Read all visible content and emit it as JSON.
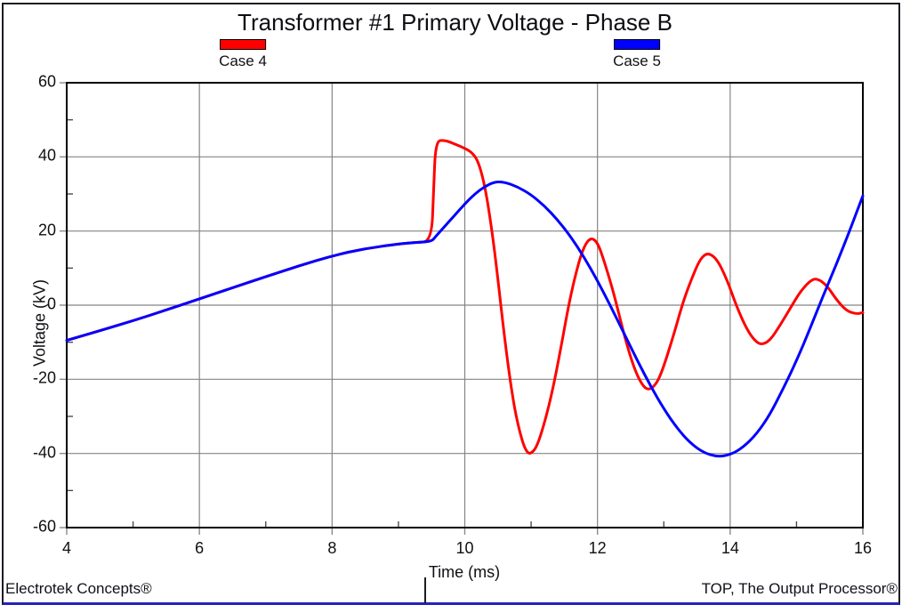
{
  "window": {
    "footer_left": "Electrotek Concepts®",
    "footer_right": "TOP, The Output Processor®"
  },
  "colors": {
    "grid": "#858585",
    "frame": "#000000",
    "major_tick": "#8a8a8a",
    "minor_tick": "#4d4d4d",
    "bottom_bar": "#2323b8",
    "case4": "#ff0000",
    "case5": "#0000ff"
  },
  "chart_data": {
    "type": "line",
    "title": "Transformer #1 Primary Voltage - Phase B",
    "xlabel": "Time (ms)",
    "ylabel": "Voltage (kV)",
    "xlim": [
      4,
      16
    ],
    "ylim": [
      -60,
      60
    ],
    "x_major_ticks": [
      4,
      6,
      8,
      10,
      12,
      14,
      16
    ],
    "x_minor_ticks": [
      5,
      7,
      9,
      11,
      13,
      15
    ],
    "y_major_ticks": [
      -60,
      -40,
      -20,
      0,
      20,
      40,
      60
    ],
    "y_minor_ticks": [
      -50,
      -30,
      -10,
      10,
      30,
      50
    ],
    "grid_x": [
      6,
      8,
      10,
      12,
      14
    ],
    "grid_y": [
      -40,
      -20,
      0,
      20,
      40
    ],
    "grid": "major gridlines, gray, on",
    "legend_position": "top",
    "series": [
      {
        "name": "Case 4",
        "color": "#ff0000",
        "points": [
          [
            4.0,
            -9.5
          ],
          [
            4.5,
            -6.9
          ],
          [
            5.0,
            -4.2
          ],
          [
            5.5,
            -1.3
          ],
          [
            6.0,
            1.7
          ],
          [
            6.5,
            4.7
          ],
          [
            7.0,
            7.7
          ],
          [
            7.5,
            10.6
          ],
          [
            8.0,
            13.3
          ],
          [
            8.5,
            15.3
          ],
          [
            9.0,
            16.5
          ],
          [
            9.25,
            16.9
          ],
          [
            9.5,
            17.2
          ],
          [
            9.53,
            31.0
          ],
          [
            9.56,
            44.3
          ],
          [
            9.7,
            44.5
          ],
          [
            9.85,
            43.5
          ],
          [
            10.0,
            42.3
          ],
          [
            10.1,
            41.3
          ],
          [
            10.2,
            39.0
          ],
          [
            10.3,
            32.5
          ],
          [
            10.4,
            21.5
          ],
          [
            10.5,
            7.0
          ],
          [
            10.6,
            -9.0
          ],
          [
            10.7,
            -22.5
          ],
          [
            10.8,
            -32.5
          ],
          [
            10.93,
            -40.3
          ],
          [
            11.05,
            -39.5
          ],
          [
            11.15,
            -35.0
          ],
          [
            11.3,
            -25.0
          ],
          [
            11.45,
            -11.5
          ],
          [
            11.57,
            0.5
          ],
          [
            11.7,
            10.5
          ],
          [
            11.8,
            16.0
          ],
          [
            11.9,
            18.3
          ],
          [
            12.0,
            17.0
          ],
          [
            12.1,
            12.0
          ],
          [
            12.25,
            3.0
          ],
          [
            12.4,
            -8.0
          ],
          [
            12.55,
            -17.0
          ],
          [
            12.68,
            -21.8
          ],
          [
            12.78,
            -23.0
          ],
          [
            12.9,
            -21.0
          ],
          [
            13.0,
            -16.5
          ],
          [
            13.15,
            -8.0
          ],
          [
            13.3,
            1.5
          ],
          [
            13.45,
            8.5
          ],
          [
            13.55,
            12.5
          ],
          [
            13.66,
            14.2
          ],
          [
            13.8,
            12.5
          ],
          [
            13.95,
            7.0
          ],
          [
            14.1,
            -0.5
          ],
          [
            14.25,
            -6.5
          ],
          [
            14.38,
            -9.8
          ],
          [
            14.48,
            -10.7
          ],
          [
            14.6,
            -9.5
          ],
          [
            14.75,
            -5.5
          ],
          [
            14.9,
            -1.0
          ],
          [
            15.05,
            3.5
          ],
          [
            15.2,
            6.5
          ],
          [
            15.3,
            7.3
          ],
          [
            15.45,
            5.5
          ],
          [
            15.6,
            1.5
          ],
          [
            15.75,
            -1.5
          ],
          [
            15.9,
            -2.4
          ],
          [
            16.0,
            -2.0
          ]
        ]
      },
      {
        "name": "Case 5",
        "color": "#0000ff",
        "points": [
          [
            4.0,
            -9.5
          ],
          [
            4.5,
            -6.9
          ],
          [
            5.0,
            -4.2
          ],
          [
            5.5,
            -1.3
          ],
          [
            6.0,
            1.7
          ],
          [
            6.5,
            4.7
          ],
          [
            7.0,
            7.7
          ],
          [
            7.5,
            10.6
          ],
          [
            8.0,
            13.3
          ],
          [
            8.5,
            15.3
          ],
          [
            9.0,
            16.5
          ],
          [
            9.25,
            16.9
          ],
          [
            9.5,
            17.2
          ],
          [
            9.55,
            18.3
          ],
          [
            9.7,
            21.3
          ],
          [
            9.85,
            24.3
          ],
          [
            10.0,
            27.3
          ],
          [
            10.15,
            30.0
          ],
          [
            10.3,
            32.0
          ],
          [
            10.45,
            33.3
          ],
          [
            10.6,
            33.2
          ],
          [
            10.8,
            31.9
          ],
          [
            11.0,
            29.8
          ],
          [
            11.2,
            26.8
          ],
          [
            11.4,
            23.0
          ],
          [
            11.6,
            18.4
          ],
          [
            11.8,
            12.9
          ],
          [
            12.0,
            6.6
          ],
          [
            12.2,
            -0.3
          ],
          [
            12.4,
            -7.6
          ],
          [
            12.6,
            -14.9
          ],
          [
            12.8,
            -21.8
          ],
          [
            13.0,
            -28.0
          ],
          [
            13.2,
            -33.2
          ],
          [
            13.4,
            -37.2
          ],
          [
            13.6,
            -39.8
          ],
          [
            13.8,
            -40.9
          ],
          [
            14.0,
            -40.4
          ],
          [
            14.2,
            -38.3
          ],
          [
            14.4,
            -34.7
          ],
          [
            14.6,
            -29.5
          ],
          [
            14.8,
            -22.5
          ],
          [
            15.0,
            -15.0
          ],
          [
            15.2,
            -6.5
          ],
          [
            15.4,
            2.5
          ],
          [
            15.6,
            11.0
          ],
          [
            15.8,
            20.0
          ],
          [
            16.0,
            29.5
          ]
        ]
      }
    ]
  }
}
